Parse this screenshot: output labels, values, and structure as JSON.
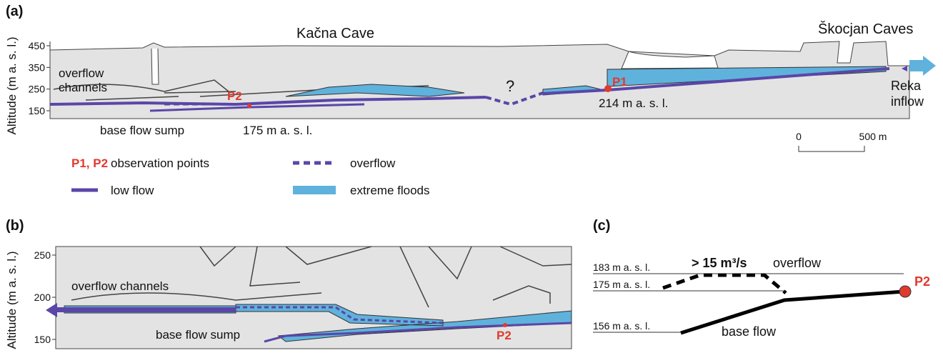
{
  "panel_a": {
    "label": "(a)",
    "title_left": "Kačna Cave",
    "title_right": "Škocjan Caves",
    "y_axis_label": "Altitude (m a. s. l.)",
    "yticks": [
      450,
      350,
      250,
      150
    ],
    "annotations": {
      "overflow_channels": [
        "overflow",
        "channels"
      ],
      "base_flow_sump": "base flow sump",
      "p2_altitude": "175 m a. s. l.",
      "p2": "P2",
      "p1": "P1",
      "p1_altitude": "214 m a. s. l.",
      "unknown": "?",
      "reka_inflow": [
        "Reka",
        "inflow"
      ]
    },
    "scale_bar": {
      "start": 0,
      "end": "500 m"
    }
  },
  "legend": {
    "observation_points": {
      "symbol": "P1, P2",
      "label": "observation points"
    },
    "overflow": "overflow",
    "low_flow": "low flow",
    "extreme_floods": "extreme floods"
  },
  "panel_b": {
    "label": "(b)",
    "y_axis_label": "Altitude (m a. s. l.)",
    "yticks": [
      250,
      200,
      150
    ],
    "annotations": {
      "overflow_channels": "overflow channels",
      "base_flow_sump": "base flow sump",
      "p2": "P2"
    }
  },
  "panel_c": {
    "label": "(c)",
    "levels": [
      "183 m a. s. l.",
      "175 m a. s. l.",
      "156 m a. s. l."
    ],
    "discharge": "> 15 m³/s",
    "overflow": "overflow",
    "base_flow": "base flow",
    "p2": "P2"
  }
}
